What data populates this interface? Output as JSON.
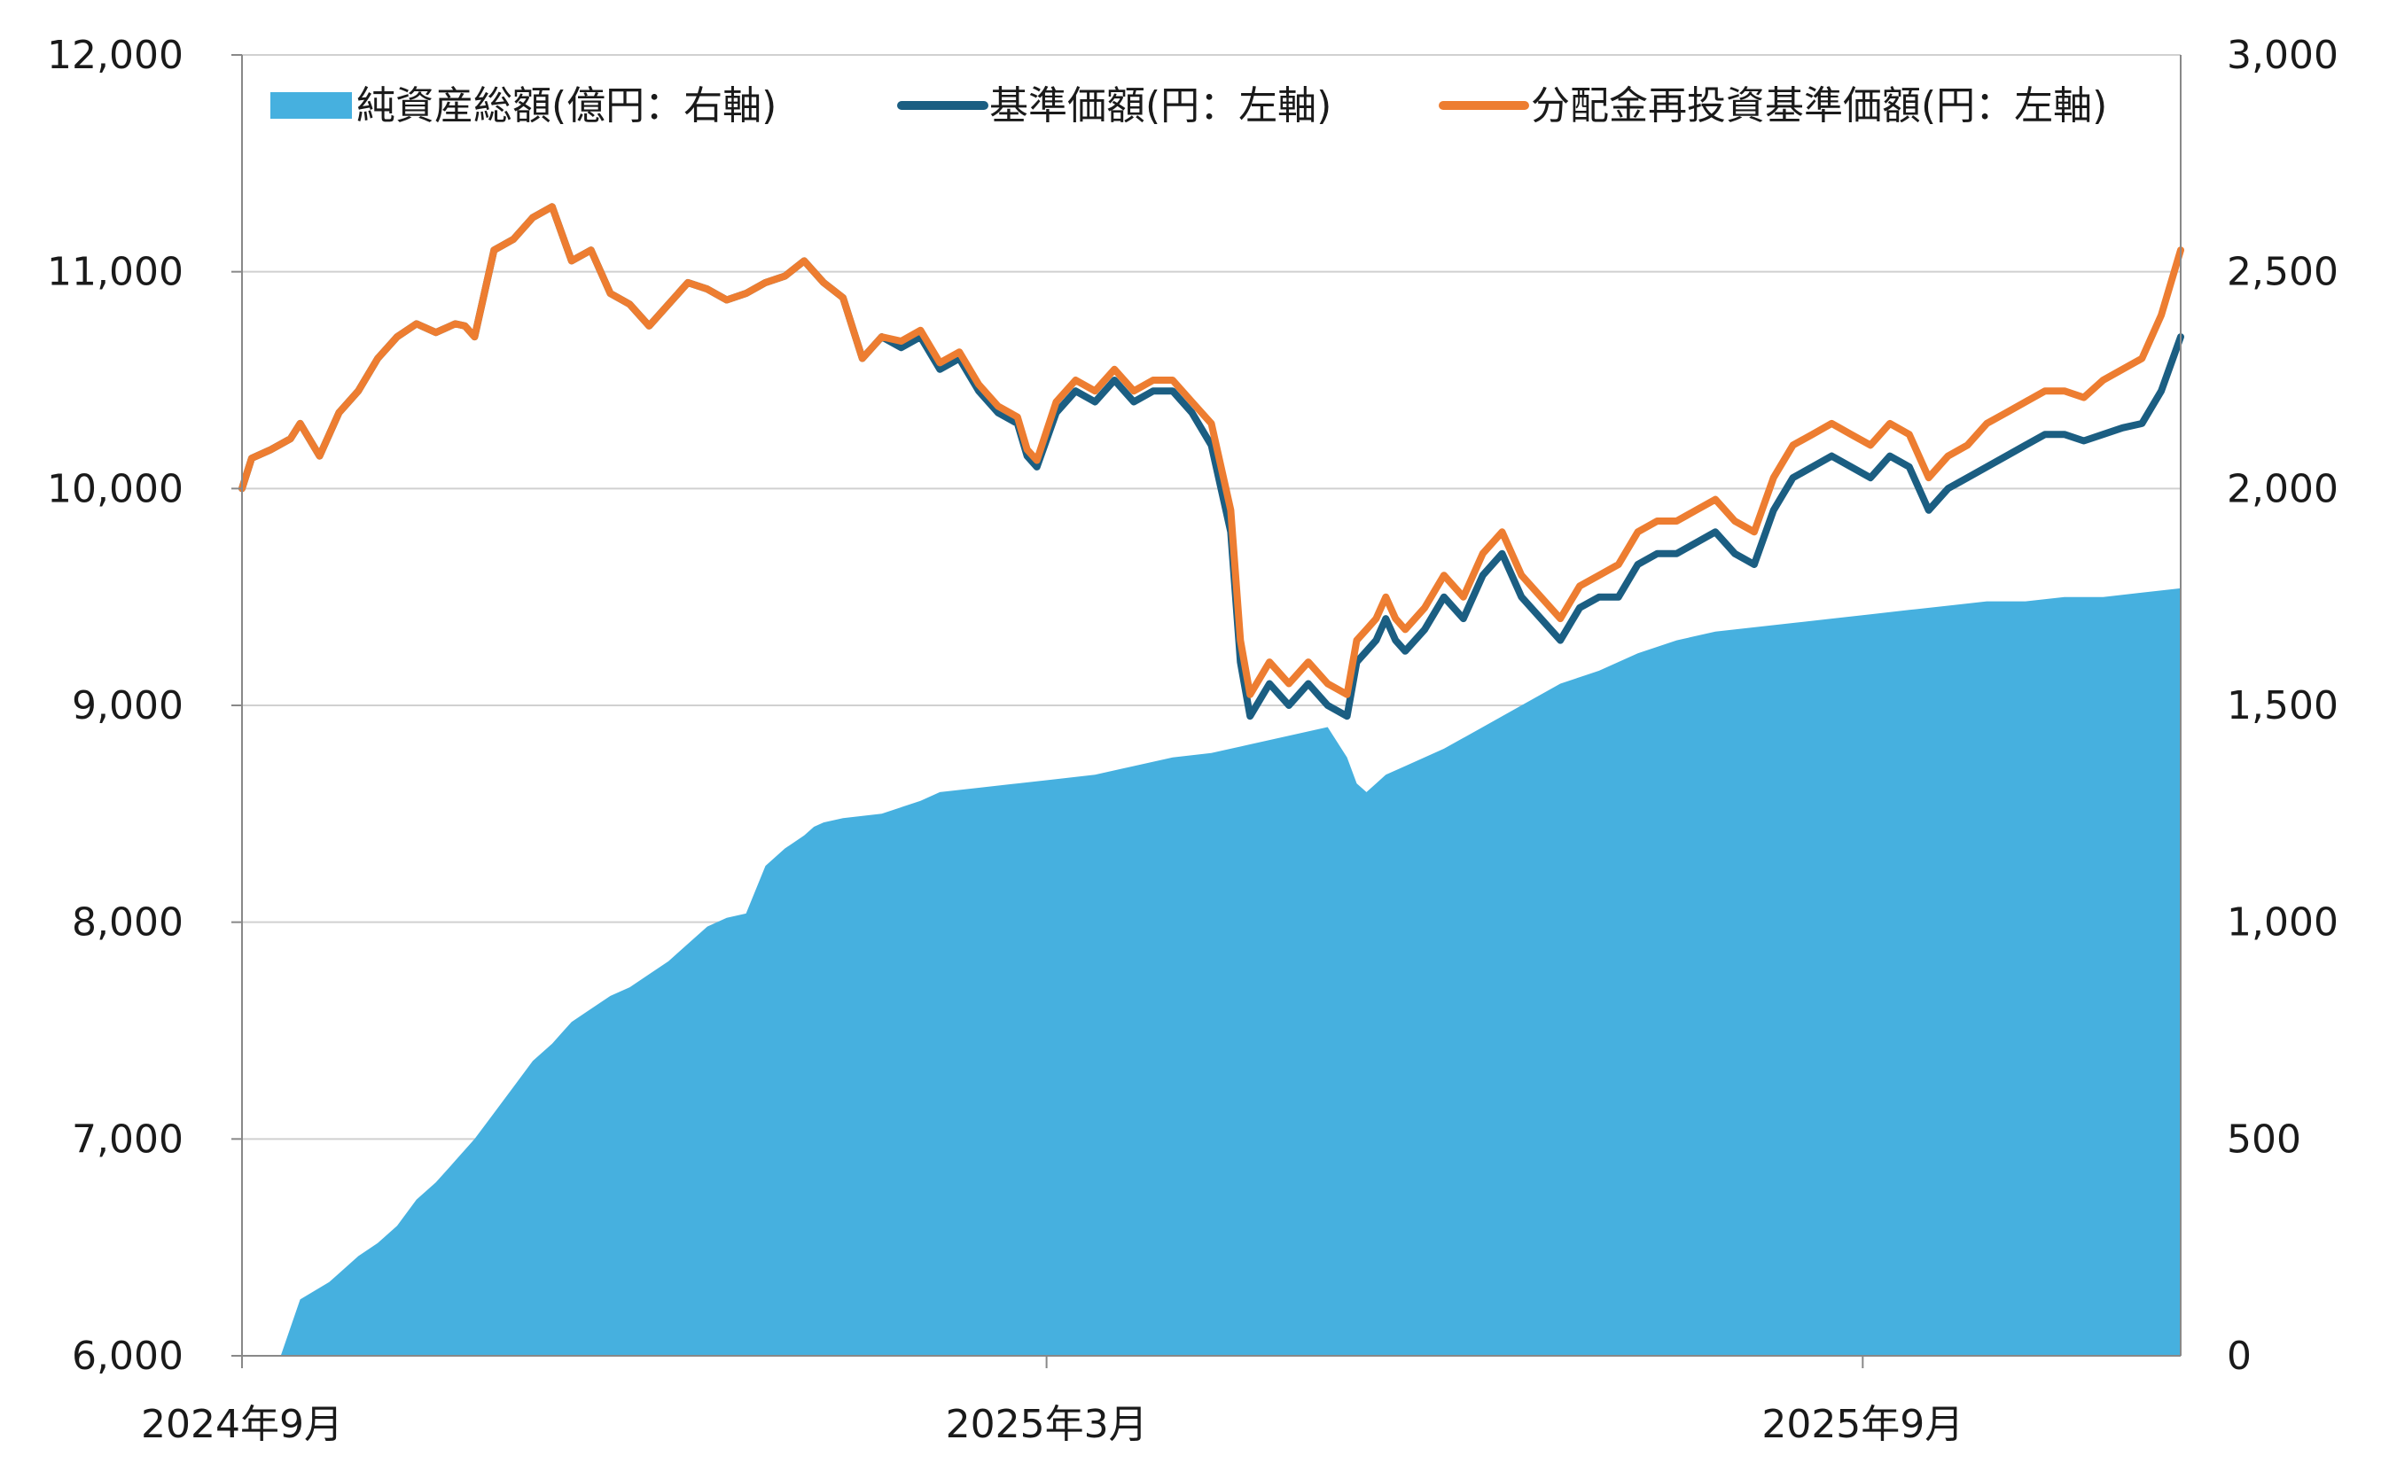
{
  "chart_data": {
    "type": "area+line",
    "x_ticks": [
      "2024年9月",
      "2025年3月",
      "2025年9月"
    ],
    "y_left": {
      "ticks": [
        "6,000",
        "7,000",
        "8,000",
        "9,000",
        "10,000",
        "11,000",
        "12,000"
      ],
      "range": [
        6000,
        12000
      ]
    },
    "y_right": {
      "ticks": [
        "0",
        "500",
        "1,000",
        "1,500",
        "2,000",
        "2,500",
        "3,000"
      ],
      "range": [
        0,
        3000
      ]
    },
    "grid": "horizontal",
    "legend_position": "top",
    "colors": {
      "aum": "#46b0df",
      "nav": "#1b5e82",
      "reinvested": "#ed7d31",
      "grid": "#d0d0d0",
      "axis": "#888888"
    },
    "series": [
      {
        "name": "純資産総額(億円：右軸)",
        "axis": "right",
        "kind": "area",
        "x": [
          0.02,
          0.03,
          0.045,
          0.06,
          0.07,
          0.08,
          0.09,
          0.1,
          0.11,
          0.12,
          0.13,
          0.14,
          0.15,
          0.16,
          0.17,
          0.18,
          0.19,
          0.2,
          0.21,
          0.22,
          0.23,
          0.24,
          0.25,
          0.26,
          0.27,
          0.28,
          0.29,
          0.295,
          0.3,
          0.31,
          0.33,
          0.35,
          0.36,
          0.38,
          0.4,
          0.42,
          0.44,
          0.46,
          0.48,
          0.5,
          0.52,
          0.54,
          0.56,
          0.57,
          0.575,
          0.58,
          0.585,
          0.59,
          0.6,
          0.62,
          0.64,
          0.66,
          0.68,
          0.7,
          0.72,
          0.74,
          0.76,
          0.78,
          0.8,
          0.82,
          0.84,
          0.86,
          0.88,
          0.9,
          0.92,
          0.94,
          0.96,
          0.98,
          1.0
        ],
        "values": [
          0,
          130,
          170,
          230,
          260,
          300,
          360,
          400,
          450,
          500,
          560,
          620,
          680,
          720,
          770,
          800,
          830,
          850,
          880,
          910,
          950,
          990,
          1010,
          1020,
          1130,
          1170,
          1200,
          1220,
          1230,
          1240,
          1250,
          1280,
          1300,
          1310,
          1320,
          1330,
          1340,
          1360,
          1380,
          1390,
          1410,
          1430,
          1450,
          1380,
          1320,
          1300,
          1320,
          1340,
          1360,
          1400,
          1450,
          1500,
          1550,
          1580,
          1620,
          1650,
          1670,
          1680,
          1690,
          1700,
          1710,
          1720,
          1730,
          1740,
          1740,
          1750,
          1750,
          1760,
          1770
        ]
      },
      {
        "name": "基準価額(円：左軸)",
        "axis": "left",
        "kind": "line",
        "x": [
          0.0,
          0.005,
          0.015,
          0.025,
          0.03,
          0.04,
          0.05,
          0.06,
          0.07,
          0.08,
          0.09,
          0.1,
          0.11,
          0.115,
          0.12,
          0.13,
          0.14,
          0.15,
          0.16,
          0.17,
          0.18,
          0.19,
          0.2,
          0.21,
          0.22,
          0.23,
          0.24,
          0.25,
          0.26,
          0.27,
          0.28,
          0.29,
          0.3,
          0.31,
          0.32,
          0.33,
          0.34,
          0.35,
          0.36,
          0.37,
          0.38,
          0.39,
          0.4,
          0.405,
          0.41,
          0.42,
          0.43,
          0.44,
          0.45,
          0.46,
          0.47,
          0.48,
          0.49,
          0.5,
          0.51,
          0.515,
          0.52,
          0.53,
          0.54,
          0.55,
          0.56,
          0.57,
          0.575,
          0.58,
          0.585,
          0.59,
          0.595,
          0.6,
          0.61,
          0.62,
          0.63,
          0.64,
          0.65,
          0.66,
          0.67,
          0.68,
          0.69,
          0.7,
          0.71,
          0.72,
          0.73,
          0.74,
          0.75,
          0.76,
          0.77,
          0.78,
          0.79,
          0.8,
          0.81,
          0.82,
          0.83,
          0.84,
          0.85,
          0.86,
          0.87,
          0.88,
          0.89,
          0.9,
          0.91,
          0.92,
          0.93,
          0.94,
          0.95,
          0.96,
          0.97,
          0.98,
          0.99,
          1.0
        ],
        "values": [
          10000,
          10140,
          10180,
          10230,
          10300,
          10150,
          10350,
          10450,
          10600,
          10700,
          10760,
          10720,
          10760,
          10750,
          10700,
          11100,
          11150,
          11250,
          11300,
          11050,
          11100,
          10900,
          10850,
          10750,
          10850,
          10950,
          10920,
          10870,
          10900,
          10950,
          10980,
          11050,
          10950,
          10880,
          10600,
          10700,
          10650,
          10700,
          10550,
          10600,
          10450,
          10350,
          10300,
          10150,
          10100,
          10350,
          10450,
          10400,
          10500,
          10400,
          10450,
          10450,
          10350,
          10200,
          9800,
          9200,
          8950,
          9100,
          9000,
          9100,
          9000,
          8950,
          9200,
          9250,
          9300,
          9400,
          9300,
          9250,
          9350,
          9500,
          9400,
          9600,
          9700,
          9500,
          9400,
          9300,
          9450,
          9500,
          9500,
          9650,
          9700,
          9700,
          9750,
          9800,
          9700,
          9650,
          9900,
          10050,
          10100,
          10150,
          10100,
          10050,
          10150,
          10100,
          9900,
          10000,
          10050,
          10100,
          10150,
          10200,
          10250,
          10250,
          10220,
          10250,
          10280,
          10300,
          10450,
          10700
        ]
      },
      {
        "name": "分配金再投資基準価額(円：左軸)",
        "axis": "left",
        "kind": "line",
        "x": [
          0.0,
          0.005,
          0.015,
          0.025,
          0.03,
          0.04,
          0.05,
          0.06,
          0.07,
          0.08,
          0.09,
          0.1,
          0.11,
          0.115,
          0.12,
          0.13,
          0.14,
          0.15,
          0.16,
          0.17,
          0.18,
          0.19,
          0.2,
          0.21,
          0.22,
          0.23,
          0.24,
          0.25,
          0.26,
          0.27,
          0.28,
          0.29,
          0.3,
          0.31,
          0.32,
          0.33,
          0.34,
          0.35,
          0.36,
          0.37,
          0.38,
          0.39,
          0.4,
          0.405,
          0.41,
          0.42,
          0.43,
          0.44,
          0.45,
          0.46,
          0.47,
          0.48,
          0.49,
          0.5,
          0.51,
          0.515,
          0.52,
          0.53,
          0.54,
          0.55,
          0.56,
          0.57,
          0.575,
          0.58,
          0.585,
          0.59,
          0.595,
          0.6,
          0.61,
          0.62,
          0.63,
          0.64,
          0.65,
          0.66,
          0.67,
          0.68,
          0.69,
          0.7,
          0.71,
          0.72,
          0.73,
          0.74,
          0.75,
          0.76,
          0.77,
          0.78,
          0.79,
          0.8,
          0.81,
          0.82,
          0.83,
          0.84,
          0.85,
          0.86,
          0.87,
          0.88,
          0.89,
          0.9,
          0.91,
          0.92,
          0.93,
          0.94,
          0.95,
          0.96,
          0.97,
          0.98,
          0.99,
          1.0
        ],
        "values": [
          10000,
          10140,
          10180,
          10230,
          10300,
          10150,
          10350,
          10450,
          10600,
          10700,
          10760,
          10720,
          10760,
          10750,
          10700,
          11100,
          11150,
          11250,
          11300,
          11050,
          11100,
          10900,
          10850,
          10750,
          10850,
          10950,
          10920,
          10870,
          10900,
          10950,
          10980,
          11050,
          10950,
          10880,
          10600,
          10700,
          10680,
          10730,
          10580,
          10630,
          10480,
          10380,
          10330,
          10180,
          10130,
          10400,
          10500,
          10450,
          10550,
          10450,
          10500,
          10500,
          10400,
          10300,
          9900,
          9300,
          9050,
          9200,
          9100,
          9200,
          9100,
          9050,
          9300,
          9350,
          9400,
          9500,
          9400,
          9350,
          9450,
          9600,
          9500,
          9700,
          9800,
          9600,
          9500,
          9400,
          9550,
          9600,
          9650,
          9800,
          9850,
          9850,
          9900,
          9950,
          9850,
          9800,
          10050,
          10200,
          10250,
          10300,
          10250,
          10200,
          10300,
          10250,
          10050,
          10150,
          10200,
          10300,
          10350,
          10400,
          10450,
          10450,
          10420,
          10500,
          10550,
          10600,
          10800,
          11100
        ]
      }
    ]
  }
}
